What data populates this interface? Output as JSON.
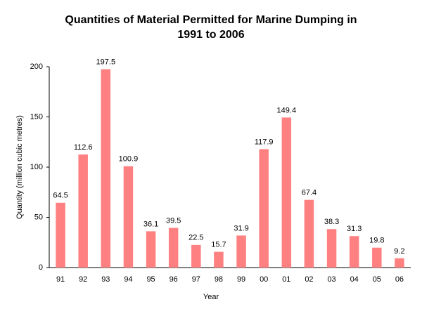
{
  "chart_data": {
    "type": "bar",
    "title": "Quantities of Material Permitted for Marine Dumping in 1991 to 2006",
    "x_label": "Year",
    "y_label": "Quantity (million cubic metres)",
    "categories": [
      "91",
      "92",
      "93",
      "94",
      "95",
      "96",
      "97",
      "98",
      "99",
      "00",
      "01",
      "02",
      "03",
      "04",
      "05",
      "06"
    ],
    "values": [
      64.5,
      112.6,
      197.5,
      100.9,
      36.1,
      39.5,
      22.5,
      15.7,
      31.9,
      117.9,
      149.4,
      67.4,
      38.3,
      31.3,
      19.8,
      9.2
    ],
    "color": "#ff8080",
    "ylim": [
      0,
      200
    ],
    "yticks": [
      0,
      50,
      100,
      150,
      200
    ],
    "grid": false
  }
}
